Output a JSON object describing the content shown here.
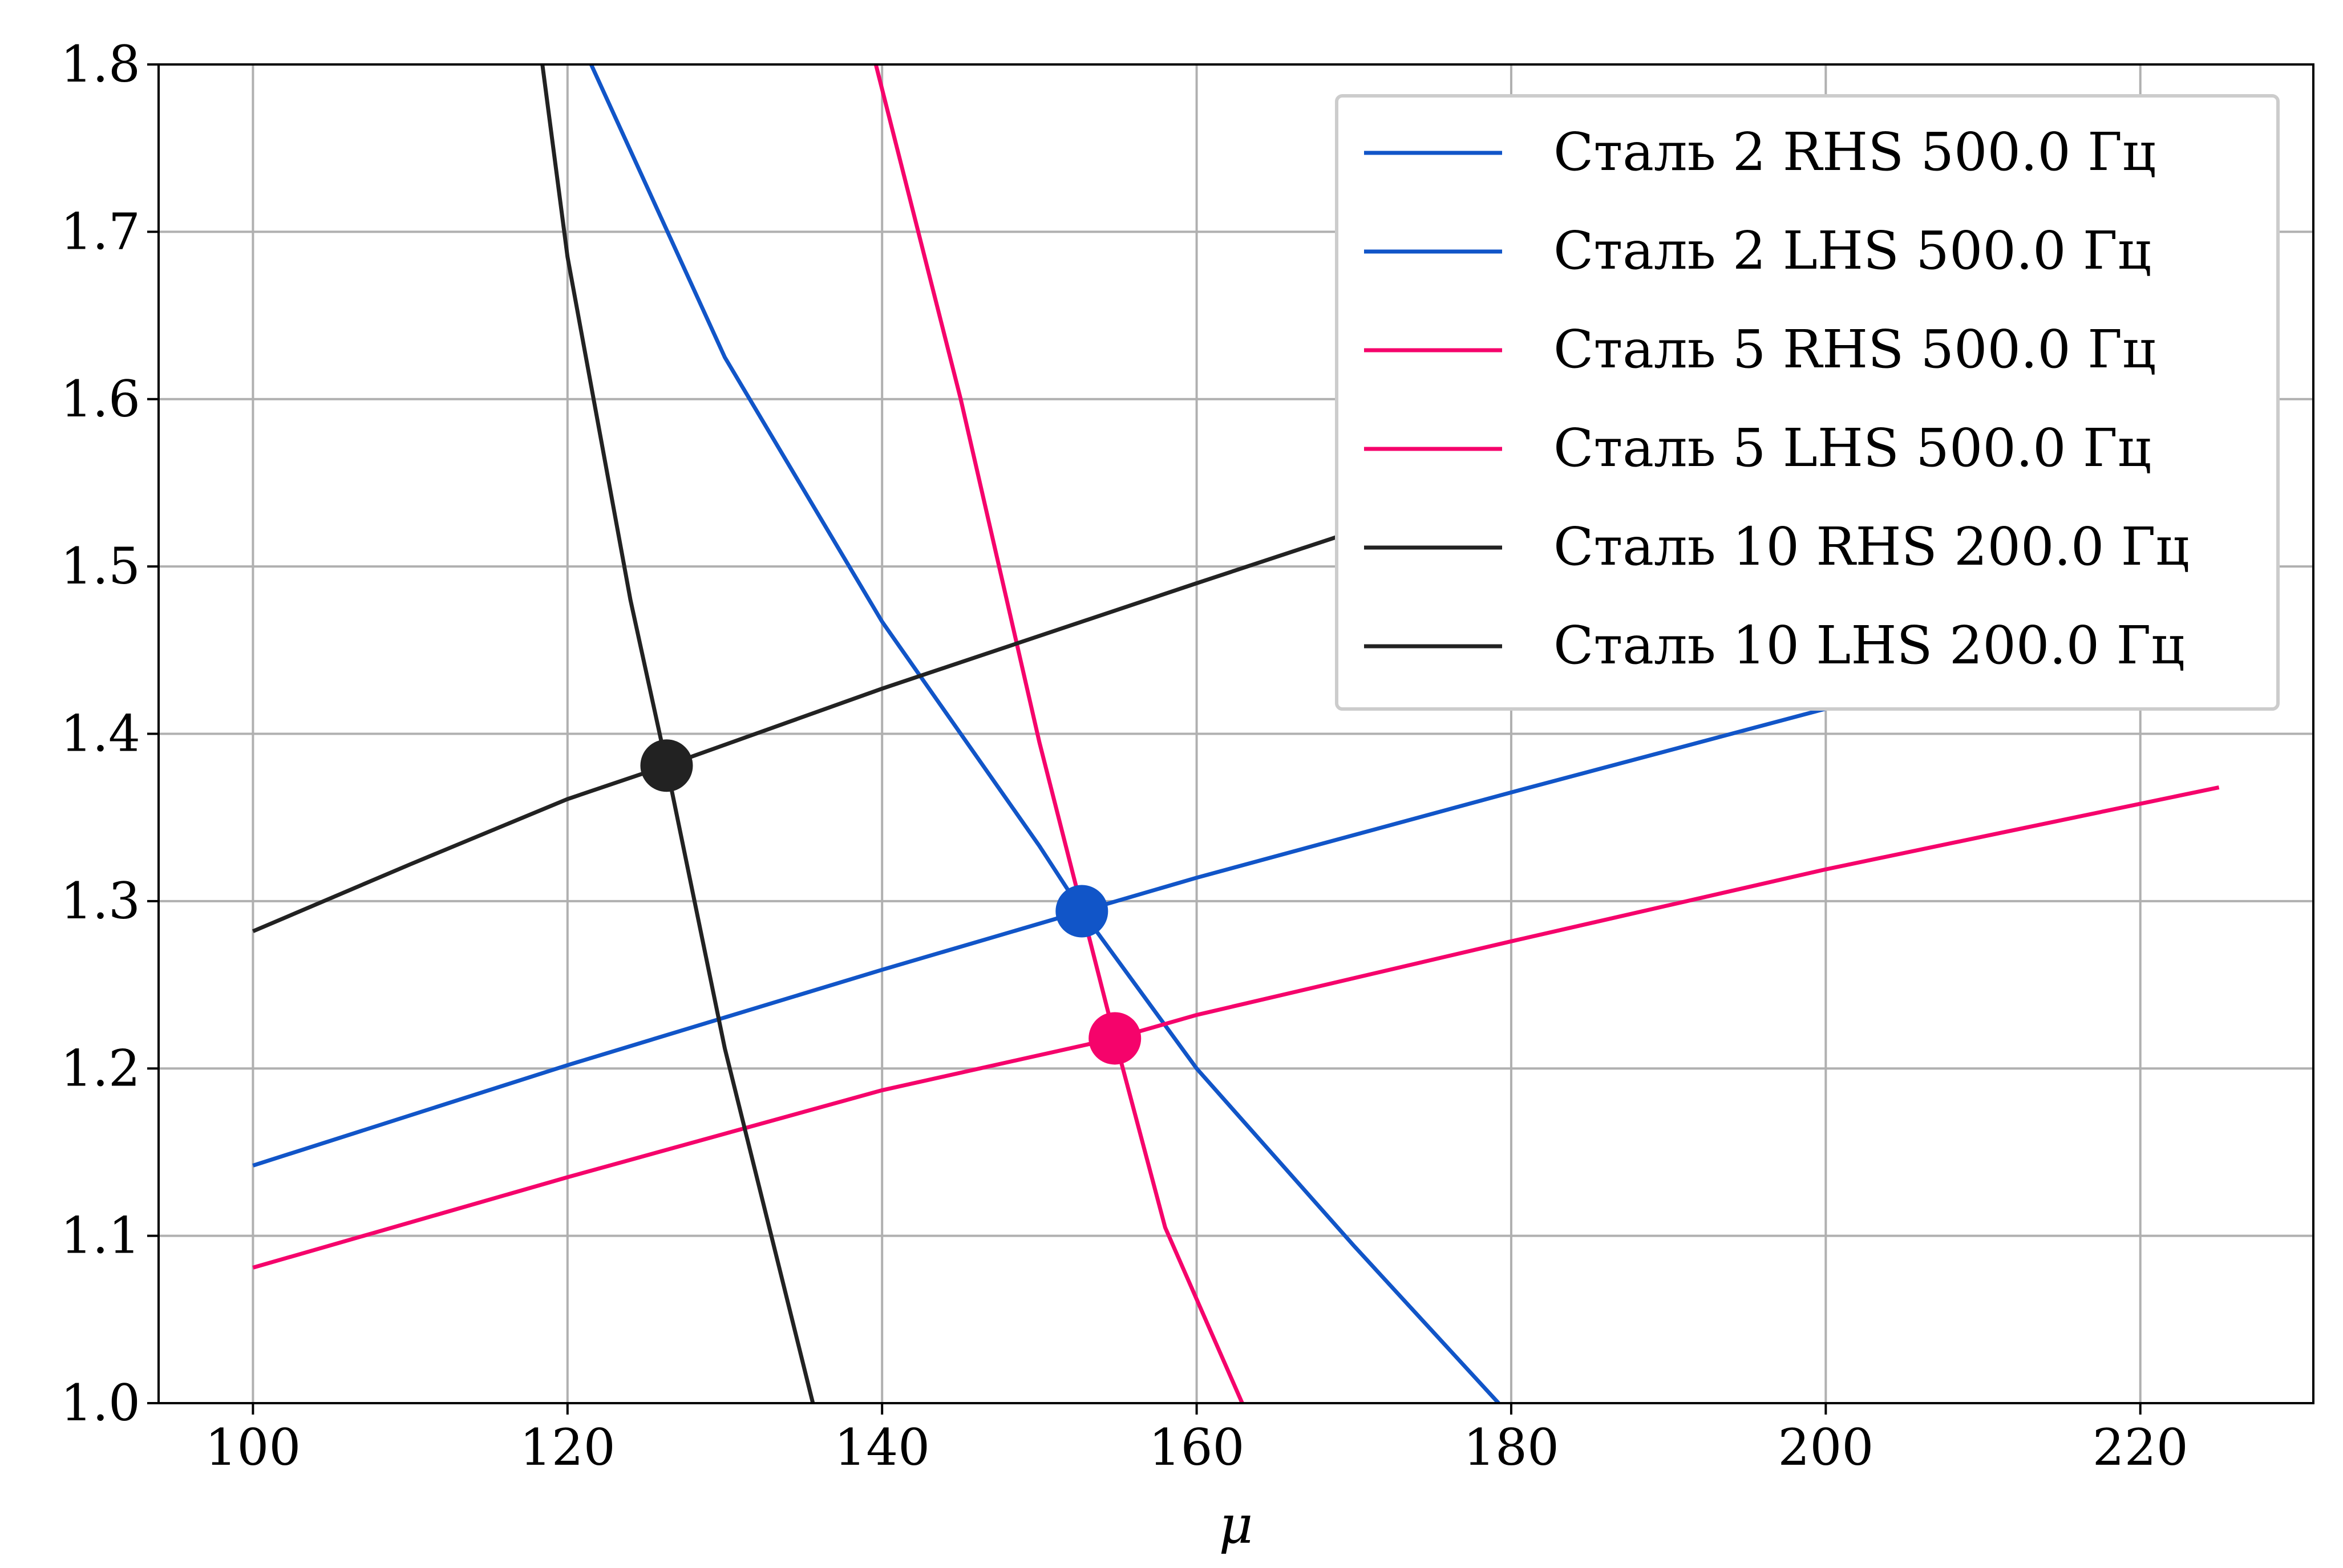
{
  "chart_data": {
    "type": "line",
    "title": "",
    "xlabel": "μ",
    "ylabel": "",
    "xlim": [
      94,
      231
    ],
    "ylim": [
      1.0,
      1.8
    ],
    "xticks": [
      100,
      120,
      140,
      160,
      180,
      200,
      220
    ],
    "yticks": [
      1.0,
      1.1,
      1.2,
      1.3,
      1.4,
      1.5,
      1.6,
      1.7,
      1.8
    ],
    "xtick_labels": [
      "100",
      "120",
      "140",
      "160",
      "180",
      "200",
      "220"
    ],
    "ytick_labels": [
      "1.0",
      "1.1",
      "1.2",
      "1.3",
      "1.4",
      "1.5",
      "1.6",
      "1.7",
      "1.8"
    ],
    "grid": true,
    "legend_position": "top-right",
    "series": [
      {
        "name": "Сталь 2 RHS 500.0 Гц",
        "color": "#1155c8",
        "x": [
          100,
          120,
          140,
          152.7,
          160,
          180,
          200,
          225
        ],
        "y": [
          1.142,
          1.202,
          1.259,
          1.294,
          1.314,
          1.365,
          1.415,
          1.476
        ]
      },
      {
        "name": "Сталь 2 LHS 500.0 Гц",
        "color": "#1155c8",
        "x": [
          121.5,
          130,
          140,
          150,
          152.7,
          160,
          170,
          179.2
        ],
        "y": [
          1.8,
          1.625,
          1.467,
          1.333,
          1.294,
          1.2,
          1.094,
          1.0
        ]
      },
      {
        "name": "Сталь 5 RHS 500.0 Гц",
        "color": "#f5036b",
        "x": [
          100,
          120,
          140,
          154.8,
          160,
          180,
          200,
          225
        ],
        "y": [
          1.081,
          1.135,
          1.187,
          1.218,
          1.232,
          1.276,
          1.319,
          1.368
        ]
      },
      {
        "name": "Сталь 5 LHS 500.0 Гц",
        "color": "#f5036b",
        "x": [
          139.6,
          145,
          150,
          154.8,
          158,
          162.9
        ],
        "y": [
          1.8,
          1.6,
          1.395,
          1.218,
          1.105,
          1.0
        ]
      },
      {
        "name": "Сталь 10 RHS 200.0 Гц",
        "color": "#222222",
        "x": [
          100,
          110,
          120,
          126.3,
          140,
          160,
          170
        ],
        "y": [
          1.282,
          1.322,
          1.361,
          1.381,
          1.427,
          1.49,
          1.521
        ]
      },
      {
        "name": "Сталь 10 LHS 200.0 Гц",
        "color": "#222222",
        "x": [
          118.4,
          120,
          124,
          126.3,
          130,
          135.6
        ],
        "y": [
          1.8,
          1.685,
          1.48,
          1.381,
          1.212,
          1.0
        ]
      }
    ],
    "markers": [
      {
        "x": 126.3,
        "y": 1.381,
        "color": "#222222"
      },
      {
        "x": 152.7,
        "y": 1.294,
        "color": "#1155c8"
      },
      {
        "x": 154.8,
        "y": 1.218,
        "color": "#f5036b"
      }
    ]
  }
}
